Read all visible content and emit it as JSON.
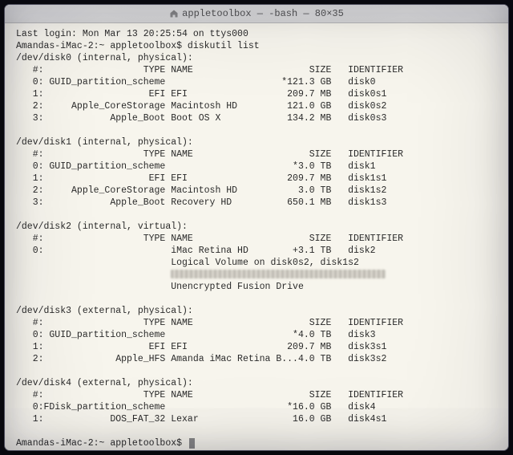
{
  "titlebar": {
    "icon": "home-icon",
    "title": "appletoolbox — -bash — 80×35"
  },
  "session": {
    "last_login": "Last login: Mon Mar 13 20:25:54 on ttys000",
    "prompt": "Amandas-iMac-2:~ appletoolbox$",
    "command": "diskutil list"
  },
  "headers": {
    "num": "#:",
    "type": "TYPE",
    "name": "NAME",
    "size": "SIZE",
    "identifier": "IDENTIFIER"
  },
  "disks": [
    {
      "device": "/dev/disk0 (internal, physical):",
      "rows": [
        {
          "n": "0:",
          "type": "GUID_partition_scheme",
          "name": "",
          "size": "*121.3 GB",
          "id": "disk0"
        },
        {
          "n": "1:",
          "type": "EFI",
          "name": "EFI",
          "size": "209.7 MB",
          "id": "disk0s1"
        },
        {
          "n": "2:",
          "type": "Apple_CoreStorage",
          "name": "Macintosh HD",
          "size": "121.0 GB",
          "id": "disk0s2"
        },
        {
          "n": "3:",
          "type": "Apple_Boot",
          "name": "Boot OS X",
          "size": "134.2 MB",
          "id": "disk0s3"
        }
      ]
    },
    {
      "device": "/dev/disk1 (internal, physical):",
      "rows": [
        {
          "n": "0:",
          "type": "GUID_partition_scheme",
          "name": "",
          "size": "*3.0 TB",
          "id": "disk1"
        },
        {
          "n": "1:",
          "type": "EFI",
          "name": "EFI",
          "size": "209.7 MB",
          "id": "disk1s1"
        },
        {
          "n": "2:",
          "type": "Apple_CoreStorage",
          "name": "Macintosh HD",
          "size": "3.0 TB",
          "id": "disk1s2"
        },
        {
          "n": "3:",
          "type": "Apple_Boot",
          "name": "Recovery HD",
          "size": "650.1 MB",
          "id": "disk1s3"
        }
      ]
    },
    {
      "device": "/dev/disk2 (internal, virtual):",
      "rows": [
        {
          "n": "0:",
          "type": "",
          "name": "iMac Retina HD",
          "size": "+3.1 TB",
          "id": "disk2"
        }
      ],
      "extra": [
        "Logical Volume on disk0s2, disk1s2",
        "__BLUR__",
        "Unencrypted Fusion Drive"
      ]
    },
    {
      "device": "/dev/disk3 (external, physical):",
      "rows": [
        {
          "n": "0:",
          "type": "GUID_partition_scheme",
          "name": "",
          "size": "*4.0 TB",
          "id": "disk3"
        },
        {
          "n": "1:",
          "type": "EFI",
          "name": "EFI",
          "size": "209.7 MB",
          "id": "disk3s1"
        },
        {
          "n": "2:",
          "type": "Apple_HFS",
          "name": "Amanda iMac Retina B...",
          "size": "4.0 TB",
          "id": "disk3s2"
        }
      ]
    },
    {
      "device": "/dev/disk4 (external, physical):",
      "rows": [
        {
          "n": "0:",
          "type": "FDisk_partition_scheme",
          "name": "",
          "size": "*16.0 GB",
          "id": "disk4"
        },
        {
          "n": "1:",
          "type": "DOS_FAT_32",
          "name": "Lexar",
          "size": "16.0 GB",
          "id": "disk4s1"
        }
      ]
    }
  ],
  "layout": {
    "col_num_start": 3,
    "col_type_end": 27,
    "col_name_start": 28,
    "col_size_end": 57,
    "col_id_start": 60,
    "extra_indent": 28
  },
  "colors": {
    "window_bg": "#f7f5ed",
    "text": "#2a2a2a",
    "titlebar_text": "#555555",
    "frame_shadow": "#0a0a12"
  }
}
